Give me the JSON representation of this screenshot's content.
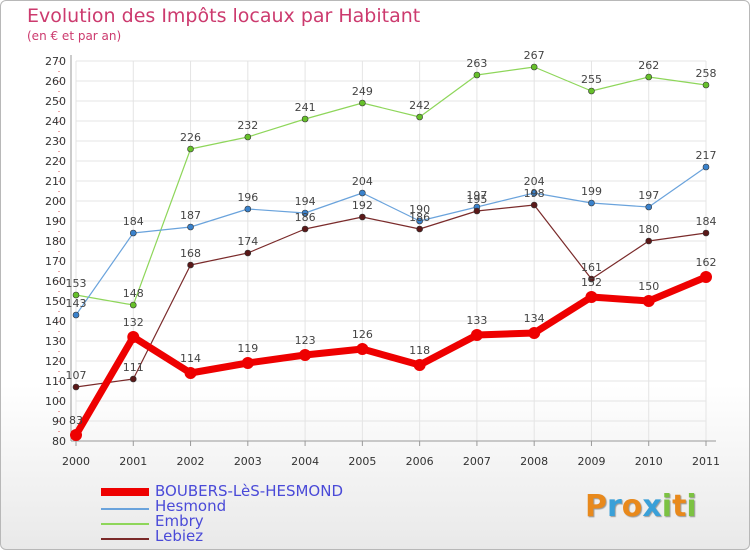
{
  "header": {
    "title": "Evolution des Impôts locaux par Habitant",
    "subtitle": "(en € et par an)"
  },
  "logo": {
    "text": "Proxiti",
    "letters": [
      "P",
      "r",
      "o",
      "x",
      "i",
      "t",
      "i"
    ],
    "colors": [
      "#e8891c",
      "#3aa0d8",
      "#e8891c",
      "#3aa0d8",
      "#7cc242",
      "#e8891c",
      "#7cc242"
    ]
  },
  "chart_data": {
    "type": "line",
    "title": "Evolution des Impôts locaux par Habitant",
    "subtitle": "(en € et par an)",
    "xlabel": "",
    "ylabel": "",
    "ylim": [
      80,
      270
    ],
    "yticks": [
      80,
      90,
      100,
      110,
      120,
      130,
      140,
      150,
      160,
      170,
      180,
      190,
      200,
      210,
      220,
      230,
      240,
      250,
      260,
      270
    ],
    "grid": true,
    "legend_position": "bottom-left",
    "x": [
      "2000",
      "2001",
      "2002",
      "2003",
      "2004",
      "2005",
      "2006",
      "2007",
      "2008",
      "2009",
      "2010",
      "2011"
    ],
    "series": [
      {
        "name": "Embry",
        "color": "#8ed65a",
        "marker": "#66c02a",
        "width": 1.2,
        "r": 3,
        "values": [
          153,
          148,
          226,
          232,
          241,
          249,
          242,
          263,
          267,
          255,
          262,
          258
        ]
      },
      {
        "name": "Hesmond",
        "color": "#6aa3dc",
        "marker": "#3a82cc",
        "width": 1.2,
        "r": 3,
        "values": [
          143,
          184,
          187,
          196,
          194,
          204,
          190,
          197,
          204,
          199,
          197,
          217
        ]
      },
      {
        "name": "Lebiez",
        "color": "#7a2a2a",
        "marker": "#5a1818",
        "width": 1.2,
        "r": 3,
        "values": [
          107,
          111,
          168,
          174,
          186,
          192,
          186,
          195,
          198,
          161,
          180,
          184
        ]
      },
      {
        "name": "BOUBERS-LèS-HESMOND",
        "color": "#ee0000",
        "marker": "#ee0000",
        "width": 7,
        "r": 6,
        "values": [
          83,
          132,
          114,
          119,
          123,
          126,
          118,
          133,
          134,
          152,
          150,
          162
        ]
      }
    ],
    "legend_order": [
      "BOUBERS-LèS-HESMOND",
      "Hesmond",
      "Embry",
      "Lebiez"
    ]
  }
}
